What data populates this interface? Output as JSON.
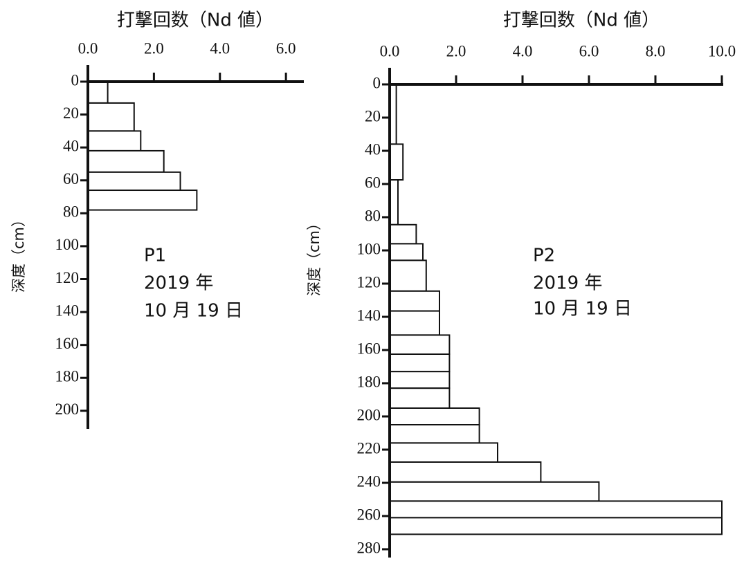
{
  "chart_data": [
    {
      "type": "histogram",
      "orientation": "horizontal",
      "y_inverted": true,
      "title": "打撃回数（Nd 値）",
      "ylabel": "深度（cm）",
      "annotation": [
        "P1",
        "2019 年",
        "10 月 19 日"
      ],
      "bins": [
        0,
        13,
        30,
        42,
        55,
        66,
        78
      ],
      "values": [
        0.6,
        1.4,
        1.6,
        2.3,
        2.8,
        3.3
      ],
      "color": "#ffffff",
      "edgecolor": "#111111",
      "xlim": [
        0,
        6.5
      ],
      "xticks": [
        {
          "value": 0,
          "label": "0.0"
        },
        {
          "value": 2,
          "label": "2.0"
        },
        {
          "value": 4,
          "label": "4.0"
        },
        {
          "value": 6,
          "label": "6.0"
        }
      ],
      "ylim": [
        0,
        211
      ],
      "yticks": [
        0,
        20,
        40,
        60,
        80,
        100,
        120,
        140,
        160,
        180,
        200
      ]
    },
    {
      "type": "histogram",
      "orientation": "horizontal",
      "y_inverted": true,
      "title": "打撃回数（Nd 値）",
      "ylabel": "深度（cm）",
      "annotation": [
        "P2",
        "2019 年",
        "10 月 19 日"
      ],
      "bins": [
        0,
        36,
        57.5,
        84.5,
        96,
        106,
        124.5,
        136.5,
        151,
        162.5,
        173,
        183,
        195,
        205,
        216,
        227.5,
        239.5,
        251,
        261,
        271
      ],
      "values": [
        0.2,
        0.4,
        0.25,
        0.8,
        1.0,
        1.1,
        1.5,
        1.5,
        1.8,
        1.8,
        1.8,
        1.8,
        2.7,
        2.7,
        3.25,
        4.55,
        6.3,
        10,
        10
      ],
      "color": "#ffffff",
      "edgecolor": "#111111",
      "xlim": [
        0,
        10
      ],
      "xticks": [
        {
          "value": 0,
          "label": "0.0"
        },
        {
          "value": 2,
          "label": "2.0"
        },
        {
          "value": 4,
          "label": "4.0"
        },
        {
          "value": 6,
          "label": "6.0"
        },
        {
          "value": 8,
          "label": "8.0"
        },
        {
          "value": 10,
          "label": "10.0"
        }
      ],
      "ylim": [
        0,
        285
      ],
      "yticks": [
        0,
        20,
        40,
        60,
        80,
        100,
        120,
        140,
        160,
        180,
        200,
        220,
        240,
        260,
        280
      ]
    }
  ]
}
